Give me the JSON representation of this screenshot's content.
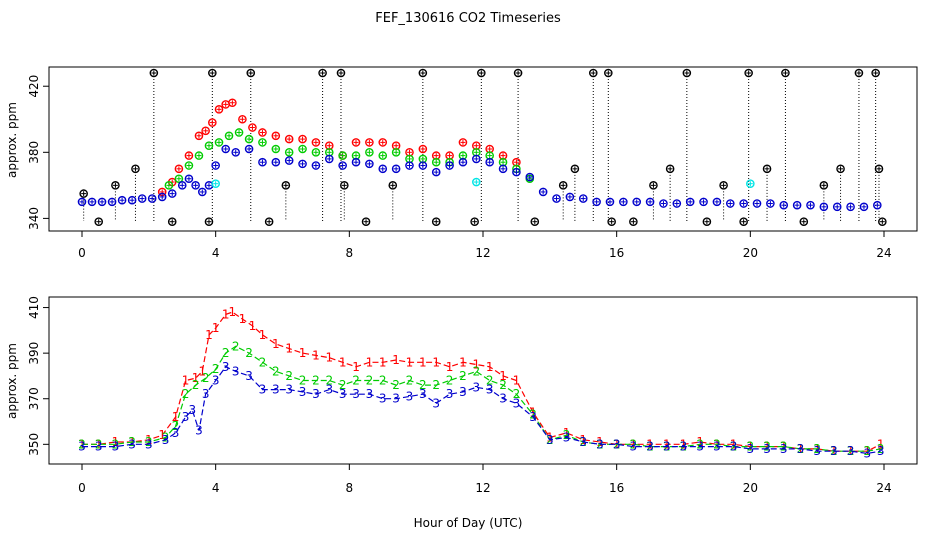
{
  "figure": {
    "title": "FEF_130616  CO2 Timeseries",
    "xlabel": "Hour of Day (UTC)"
  },
  "chart_data": [
    {
      "type": "scatter",
      "ylabel": "approx. ppm",
      "xlim": [
        0,
        24
      ],
      "ylim": [
        336,
        428
      ],
      "xticks": [
        0,
        4,
        8,
        12,
        16,
        20,
        24
      ],
      "yticks": [
        340,
        380,
        420
      ],
      "grid": false,
      "series": [
        {
          "color": "#000000",
          "marker": "circle-cross",
          "dropline": true,
          "x": [
            0.05,
            0.5,
            1.0,
            1.6,
            2.15,
            2.7,
            3.8,
            3.9,
            5.05,
            5.6,
            6.1,
            7.2,
            7.75,
            7.85,
            8.5,
            9.3,
            10.2,
            10.6,
            11.75,
            11.95,
            13.05,
            13.55,
            14.4,
            14.75,
            15.3,
            15.75,
            15.85,
            16.5,
            17.1,
            17.6,
            18.1,
            18.7,
            19.2,
            19.8,
            19.95,
            20.5,
            21.05,
            21.6,
            22.2,
            22.7,
            23.25,
            23.75,
            23.85,
            23.95
          ],
          "y": [
            355,
            338,
            360,
            370,
            428,
            338,
            338,
            428,
            428,
            338,
            360,
            428,
            428,
            360,
            338,
            360,
            428,
            338,
            338,
            428,
            428,
            338,
            360,
            370,
            428,
            428,
            338,
            338,
            360,
            370,
            428,
            338,
            360,
            338,
            428,
            370,
            428,
            338,
            360,
            370,
            428,
            428,
            370,
            338
          ]
        },
        {
          "color": "#ff0000",
          "marker": "circle-cross",
          "x": [
            2.4,
            2.7,
            2.9,
            3.2,
            3.5,
            3.7,
            3.9,
            4.1,
            4.3,
            4.5,
            4.8,
            5.1,
            5.4,
            5.8,
            6.2,
            6.6,
            7.0,
            7.4,
            7.8,
            8.2,
            8.6,
            9.0,
            9.4,
            9.8,
            10.2,
            10.6,
            11.0,
            11.4,
            11.8,
            12.2,
            12.6,
            13.0
          ],
          "y": [
            356,
            362,
            370,
            378,
            390,
            393,
            398,
            406,
            409,
            410,
            400,
            395,
            392,
            390,
            388,
            388,
            386,
            384,
            378,
            386,
            386,
            386,
            384,
            380,
            382,
            378,
            378,
            386,
            384,
            382,
            378,
            374
          ]
        },
        {
          "color": "#00cc00",
          "marker": "circle-cross",
          "x": [
            2.6,
            2.9,
            3.2,
            3.5,
            3.8,
            4.1,
            4.4,
            4.7,
            5.0,
            5.4,
            5.8,
            6.2,
            6.6,
            7.0,
            7.4,
            7.8,
            8.2,
            8.6,
            9.0,
            9.4,
            9.8,
            10.2,
            10.6,
            11.0,
            11.4,
            11.8,
            12.2,
            12.6,
            13.0,
            13.4
          ],
          "y": [
            360,
            364,
            372,
            378,
            384,
            386,
            390,
            392,
            388,
            386,
            382,
            380,
            382,
            380,
            380,
            378,
            378,
            380,
            378,
            380,
            376,
            376,
            374,
            374,
            378,
            380,
            378,
            374,
            370,
            364
          ]
        },
        {
          "color": "#0000cc",
          "marker": "circle-cross",
          "x": [
            0.0,
            0.3,
            0.6,
            0.9,
            1.2,
            1.5,
            1.8,
            2.1,
            2.4,
            2.7,
            3.0,
            3.2,
            3.4,
            3.6,
            3.8,
            4.0,
            4.3,
            4.6,
            5.0,
            5.4,
            5.8,
            6.2,
            6.6,
            7.0,
            7.4,
            7.8,
            8.2,
            8.6,
            9.0,
            9.4,
            9.8,
            10.2,
            10.6,
            11.0,
            11.4,
            11.8,
            12.2,
            12.6,
            13.0,
            13.4,
            13.8,
            14.2,
            14.6,
            15.0,
            15.4,
            15.8,
            16.2,
            16.6,
            17.0,
            17.4,
            17.8,
            18.2,
            18.6,
            19.0,
            19.4,
            19.8,
            20.2,
            20.6,
            21.0,
            21.4,
            21.8,
            22.2,
            22.6,
            23.0,
            23.4,
            23.8
          ],
          "y": [
            350,
            350,
            350,
            350,
            351,
            351,
            352,
            352,
            353,
            355,
            360,
            364,
            360,
            356,
            360,
            372,
            382,
            380,
            382,
            374,
            374,
            375,
            373,
            372,
            376,
            372,
            374,
            373,
            370,
            370,
            372,
            372,
            368,
            372,
            374,
            376,
            374,
            370,
            368,
            365,
            356,
            352,
            353,
            352,
            350,
            350,
            350,
            350,
            350,
            349,
            349,
            350,
            350,
            350,
            349,
            349,
            349,
            349,
            348,
            348,
            348,
            347,
            347,
            347,
            347,
            348
          ]
        },
        {
          "color": "#00e5e5",
          "marker": "circle-cross",
          "x": [
            4.0,
            11.8,
            20.0
          ],
          "y": [
            361,
            362,
            361
          ]
        }
      ]
    },
    {
      "type": "line",
      "ylabel": "approx. ppm",
      "xlim": [
        0,
        24
      ],
      "ylim": [
        344,
        412
      ],
      "xticks": [
        0,
        4,
        8,
        12,
        16,
        20,
        24
      ],
      "yticks": [
        350,
        370,
        390,
        410
      ],
      "grid": false,
      "series": [
        {
          "color": "#ff0000",
          "marker": "1",
          "x": [
            0.0,
            0.5,
            1.0,
            1.5,
            2.0,
            2.4,
            2.8,
            3.1,
            3.4,
            3.6,
            3.8,
            4.0,
            4.3,
            4.5,
            4.8,
            5.1,
            5.4,
            5.8,
            6.2,
            6.6,
            7.0,
            7.4,
            7.8,
            8.2,
            8.6,
            9.0,
            9.4,
            9.8,
            10.2,
            10.6,
            11.0,
            11.4,
            11.8,
            12.2,
            12.6,
            13.0,
            13.5,
            14.0,
            14.5,
            15.0,
            15.5,
            16.0,
            16.5,
            17.0,
            17.5,
            18.0,
            18.5,
            19.0,
            19.5,
            20.0,
            20.5,
            21.0,
            21.5,
            22.0,
            22.5,
            23.0,
            23.5,
            23.9
          ],
          "y": [
            350,
            350,
            351,
            351,
            352,
            354,
            362,
            378,
            379,
            382,
            398,
            401,
            407,
            408,
            405,
            402,
            398,
            394,
            392,
            390,
            389,
            388,
            386,
            384,
            386,
            386,
            387,
            386,
            386,
            386,
            384,
            386,
            385,
            384,
            380,
            378,
            364,
            353,
            355,
            352,
            351,
            350,
            350,
            350,
            350,
            350,
            351,
            350,
            350,
            349,
            349,
            349,
            348,
            348,
            347,
            347,
            347,
            350
          ]
        },
        {
          "color": "#00cc00",
          "marker": "2",
          "x": [
            0.0,
            0.5,
            1.0,
            1.5,
            2.0,
            2.5,
            2.8,
            3.1,
            3.4,
            3.7,
            4.0,
            4.3,
            4.6,
            5.0,
            5.4,
            5.8,
            6.2,
            6.6,
            7.0,
            7.4,
            7.8,
            8.2,
            8.6,
            9.0,
            9.4,
            9.8,
            10.2,
            10.6,
            11.0,
            11.4,
            11.8,
            12.2,
            12.6,
            13.0,
            13.5,
            14.0,
            14.5,
            15.0,
            15.5,
            16.0,
            16.5,
            17.0,
            17.5,
            18.0,
            18.5,
            19.0,
            19.5,
            20.0,
            20.5,
            21.0,
            21.5,
            22.0,
            22.5,
            23.0,
            23.5,
            23.9
          ],
          "y": [
            350,
            350,
            350,
            351,
            351,
            353,
            358,
            372,
            376,
            379,
            383,
            390,
            393,
            390,
            386,
            382,
            380,
            378,
            378,
            378,
            376,
            378,
            378,
            378,
            376,
            378,
            376,
            376,
            378,
            380,
            382,
            378,
            376,
            372,
            363,
            352,
            354,
            351,
            350,
            350,
            350,
            349,
            349,
            349,
            350,
            350,
            349,
            349,
            349,
            349,
            348,
            348,
            347,
            347,
            347,
            348
          ]
        },
        {
          "color": "#0000cc",
          "marker": "3",
          "x": [
            0.0,
            0.5,
            1.0,
            1.5,
            2.0,
            2.5,
            2.8,
            3.1,
            3.3,
            3.5,
            3.7,
            4.0,
            4.3,
            4.6,
            5.0,
            5.4,
            5.8,
            6.2,
            6.6,
            7.0,
            7.4,
            7.8,
            8.2,
            8.6,
            9.0,
            9.4,
            9.8,
            10.2,
            10.6,
            11.0,
            11.4,
            11.8,
            12.2,
            12.6,
            13.0,
            13.5,
            14.0,
            14.5,
            15.0,
            15.5,
            16.0,
            16.5,
            17.0,
            17.5,
            18.0,
            18.5,
            19.0,
            19.5,
            20.0,
            20.5,
            21.0,
            21.5,
            22.0,
            22.5,
            23.0,
            23.5,
            23.9
          ],
          "y": [
            349,
            349,
            349,
            350,
            350,
            352,
            355,
            362,
            365,
            356,
            372,
            378,
            384,
            382,
            380,
            374,
            374,
            374,
            373,
            372,
            374,
            372,
            372,
            372,
            370,
            370,
            371,
            372,
            368,
            372,
            373,
            375,
            374,
            370,
            368,
            362,
            352,
            353,
            351,
            350,
            350,
            349,
            349,
            349,
            349,
            349,
            349,
            349,
            348,
            348,
            348,
            348,
            347,
            347,
            347,
            346,
            347
          ]
        }
      ]
    }
  ]
}
